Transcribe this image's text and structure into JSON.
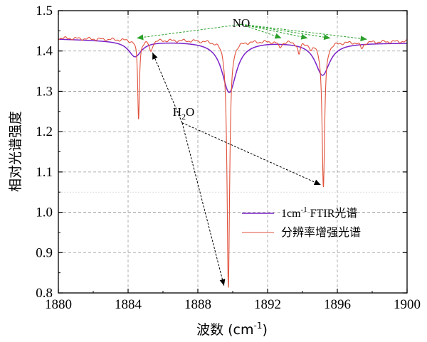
{
  "chart_data": {
    "type": "line",
    "title": "",
    "xlabel": "波数 (cm",
    "xlabel_sup": "-1",
    "xlabel_tail": ")",
    "ylabel": "相对光谱强度",
    "xlim": [
      1880,
      1900
    ],
    "ylim": [
      0.8,
      1.5
    ],
    "x_ticks": [
      1880,
      1884,
      1888,
      1892,
      1896,
      1900
    ],
    "x_tick_labels": [
      "1880",
      "1884",
      "1888",
      "1892",
      "1896",
      "1900"
    ],
    "y_ticks": [
      0.8,
      0.9,
      1.0,
      1.1,
      1.2,
      1.3,
      1.4,
      1.5
    ],
    "y_tick_labels": [
      "0.8",
      "0.9",
      "1.0",
      "1.1",
      "1.2",
      "1.3",
      "1.4",
      "1.5"
    ],
    "grid": "dashed",
    "legend_position": "lower-right",
    "series": [
      {
        "name": "1cm-1 FTIR光谱",
        "name_parts": [
          "1cm",
          "-1",
          " FTIR光谱"
        ],
        "color": "#7b22c8",
        "baseline": [
          [
            1880,
            1.43
          ],
          [
            1884,
            1.425
          ],
          [
            1888,
            1.424
          ],
          [
            1892,
            1.424
          ],
          [
            1896,
            1.42
          ],
          [
            1900,
            1.42
          ]
        ],
        "peaks": [
          {
            "center": 1884.4,
            "depth": 0.038,
            "width": 0.45
          },
          {
            "center": 1889.8,
            "depth": 0.126,
            "width": 0.5
          },
          {
            "center": 1895.15,
            "depth": 0.08,
            "width": 0.5
          }
        ]
      },
      {
        "name": "分辨率增强光谱",
        "name_parts": [
          "分辨率增强光谱"
        ],
        "color": "#e0503a",
        "baseline": [
          [
            1880,
            1.432
          ],
          [
            1884,
            1.428
          ],
          [
            1888,
            1.426
          ],
          [
            1892,
            1.424
          ],
          [
            1896,
            1.422
          ],
          [
            1900,
            1.424
          ]
        ],
        "peaks": [
          {
            "center": 1884.6,
            "depth": 0.195,
            "width": 0.06
          },
          {
            "center": 1885.3,
            "depth": 0.028,
            "width": 0.1
          },
          {
            "center": 1889.75,
            "depth": 0.612,
            "width": 0.09
          },
          {
            "center": 1892.7,
            "depth": 0.015,
            "width": 0.1
          },
          {
            "center": 1893.8,
            "depth": 0.03,
            "width": 0.09
          },
          {
            "center": 1894.5,
            "depth": 0.018,
            "width": 0.1
          },
          {
            "center": 1895.2,
            "depth": 0.36,
            "width": 0.09
          },
          {
            "center": 1897.4,
            "depth": 0.016,
            "width": 0.12
          }
        ]
      }
    ],
    "annotations": [
      {
        "label": "NO",
        "id": "no",
        "text_at": [
          1890.5,
          1.466
        ],
        "targets": [
          [
            1884.5,
            1.432
          ],
          [
            1892.8,
            1.432
          ],
          [
            1894.3,
            1.432
          ],
          [
            1895.6,
            1.432
          ],
          [
            1897.7,
            1.429
          ]
        ]
      },
      {
        "label": "H",
        "sub": "2",
        "tail": "O",
        "id": "h2o",
        "text_at": [
          1887.1,
          1.222
        ],
        "targets": [
          [
            1885.4,
            1.396
          ],
          [
            1889.5,
            0.818
          ],
          [
            1895.05,
            1.068
          ]
        ]
      }
    ],
    "highlight_y": 1.05
  }
}
